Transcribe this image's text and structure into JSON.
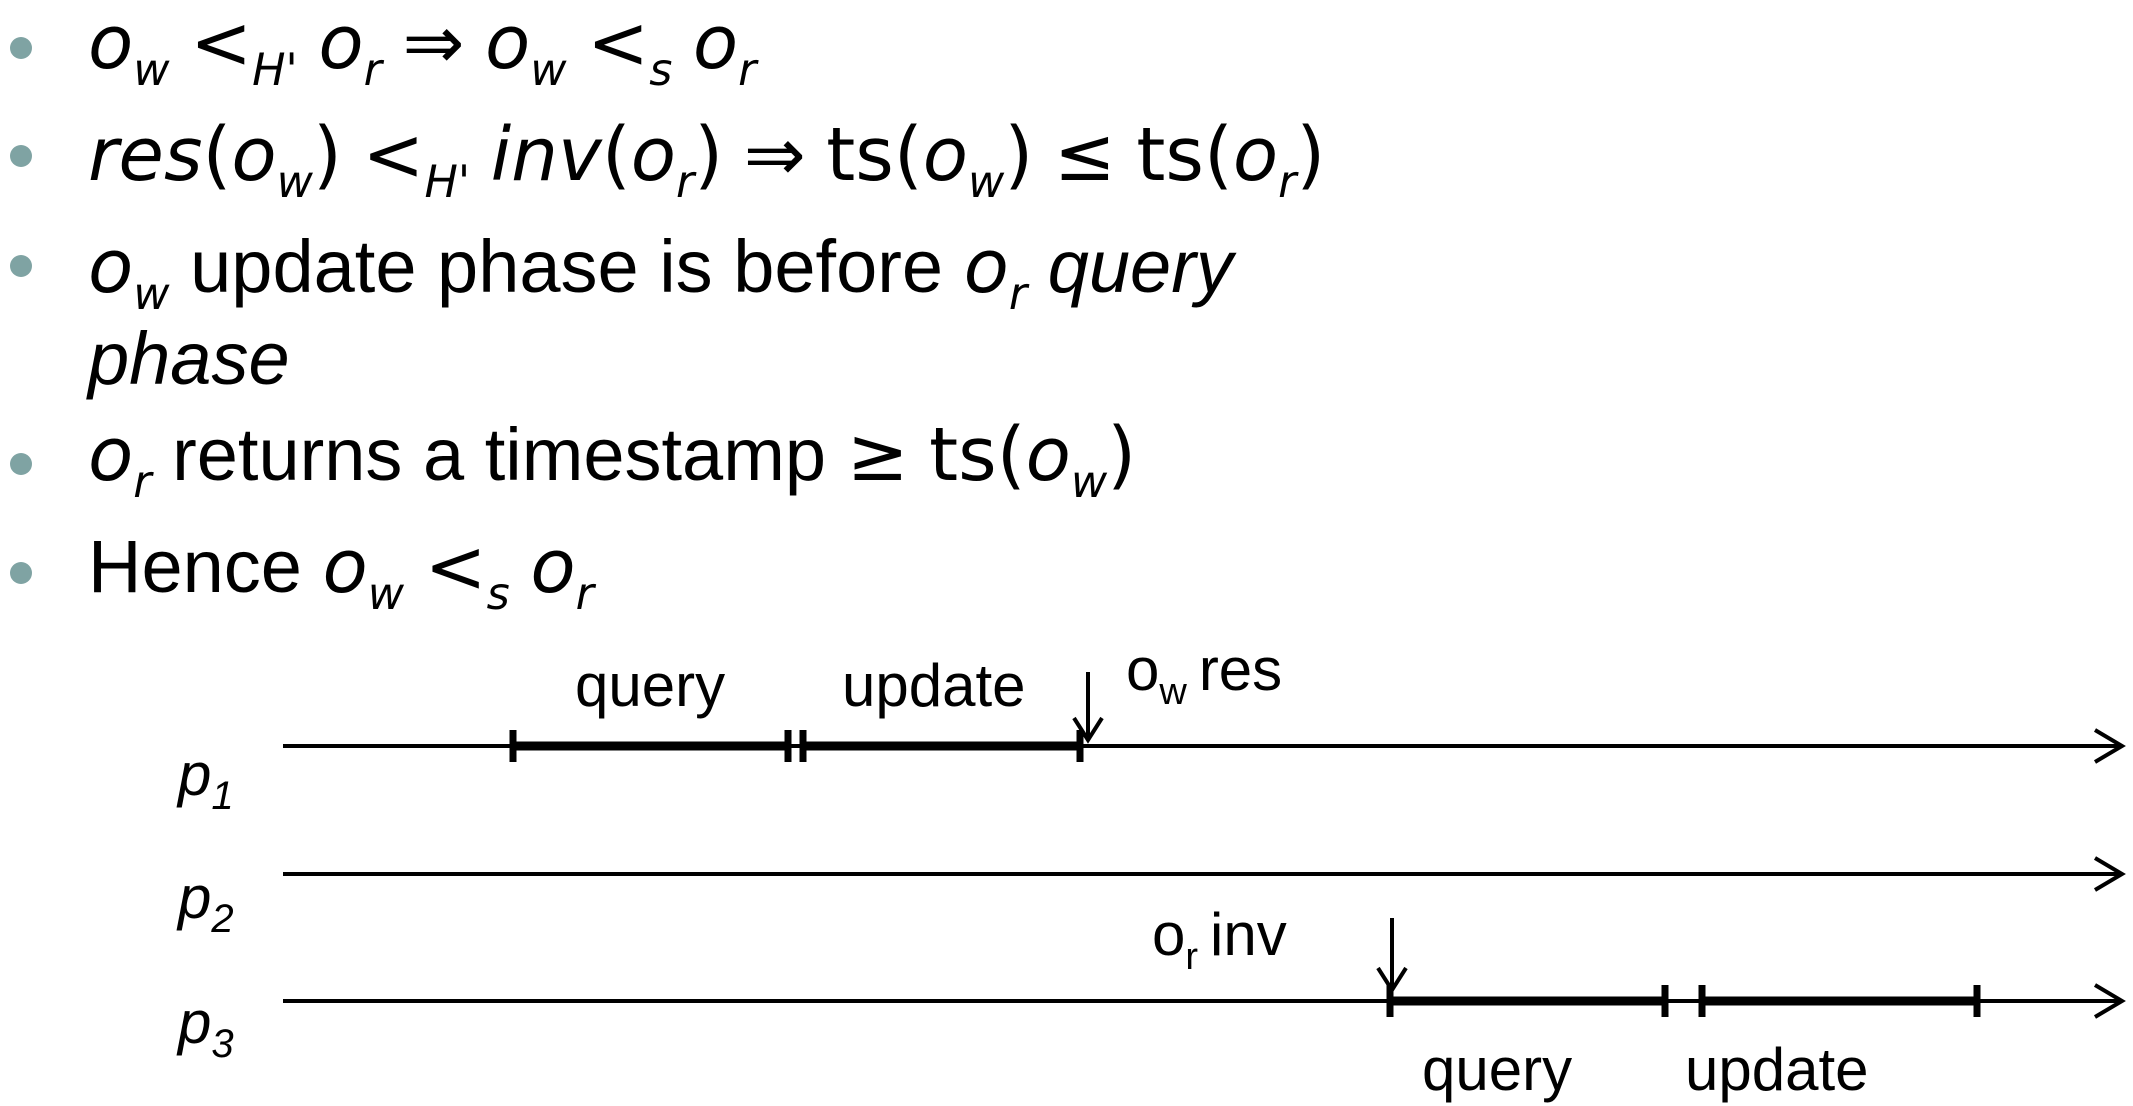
{
  "bullets": [
    {
      "parts": {
        "a": "o",
        "a_sub": "w",
        "lt": "<",
        "lt_sub": "H'",
        "b": "o",
        "b_sub": "r",
        "implies": "⇒",
        "c": "o",
        "c_sub": "w",
        "lt2": "<",
        "lt2_sub": "s",
        "d": "o",
        "d_sub": "r"
      }
    },
    {
      "parts": {
        "res": "res",
        "open1": "(",
        "o1": "o",
        "o1_sub": "w",
        "close1": ")",
        "lt": "<",
        "lt_sub": "H'",
        "inv": "inv",
        "open2": "(",
        "o2": "o",
        "o2_sub": "r",
        "close2": ")",
        "implies": "⇒",
        "ts1": "ts",
        "open3": "(",
        "o3": "o",
        "o3_sub": "w",
        "close3": ")",
        "le": "≤",
        "ts2": "ts",
        "open4": "(",
        "o4": "o",
        "o4_sub": "r",
        "close4": ")"
      }
    },
    {
      "parts": {
        "o1": "o",
        "o1_sub": "w",
        "text1": "update phase is before",
        "o2": "o",
        "o2_sub": "r",
        "text2": "query",
        "text3": "phase"
      }
    },
    {
      "parts": {
        "o1": "o",
        "o1_sub": "r",
        "text1": "returns a timestamp",
        "ge": "≥",
        "ts": "ts",
        "open": "(",
        "o2": "o",
        "o2_sub": "w",
        "close": ")"
      }
    },
    {
      "parts": {
        "text1": "Hence",
        "o1": "o",
        "o1_sub": "w",
        "lt": "<",
        "lt_sub": "s",
        "o2": "o",
        "o2_sub": "r"
      }
    }
  ],
  "diagram": {
    "processes": [
      {
        "name": "p",
        "sub": "1"
      },
      {
        "name": "p",
        "sub": "2"
      },
      {
        "name": "p",
        "sub": "3"
      }
    ],
    "p1_phases": {
      "query": "query",
      "update": "update"
    },
    "p3_phases": {
      "query": "query",
      "update": "update"
    },
    "ow_res": {
      "o": "o",
      "sub": "w",
      "text": "res"
    },
    "or_inv": {
      "o": "o",
      "sub": "r",
      "text": "inv"
    }
  }
}
